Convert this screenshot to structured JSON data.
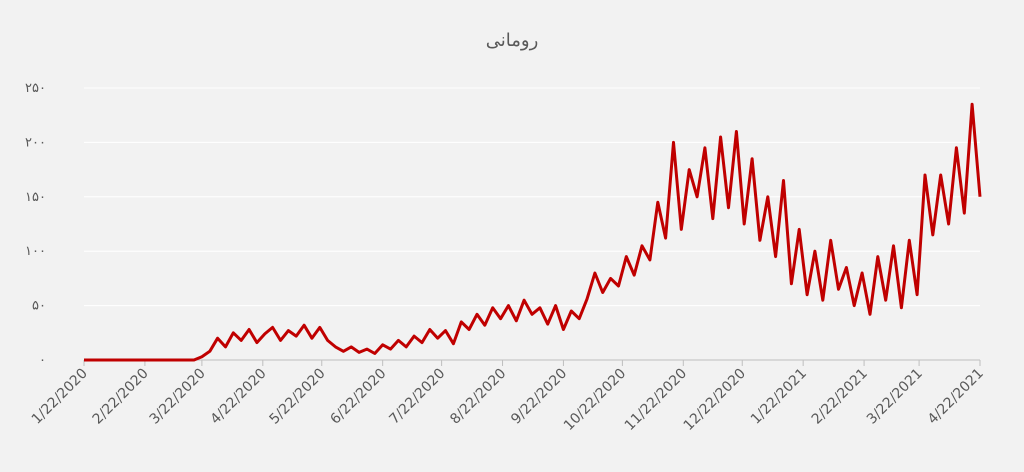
{
  "chart_data": {
    "type": "line",
    "title": "رومانی",
    "color": "#c00000",
    "grid": true,
    "x": [
      "1/22/2020",
      "1/26/2020",
      "1/30/2020",
      "2/3/2020",
      "2/7/2020",
      "2/11/2020",
      "2/15/2020",
      "2/19/2020",
      "2/23/2020",
      "2/27/2020",
      "3/2/2020",
      "3/6/2020",
      "3/10/2020",
      "3/14/2020",
      "3/18/2020",
      "3/22/2020",
      "3/26/2020",
      "3/30/2020",
      "4/3/2020",
      "4/7/2020",
      "4/11/2020",
      "4/15/2020",
      "4/19/2020",
      "4/23/2020",
      "4/27/2020",
      "5/1/2020",
      "5/5/2020",
      "5/9/2020",
      "5/13/2020",
      "5/17/2020",
      "5/21/2020",
      "5/25/2020",
      "5/29/2020",
      "6/2/2020",
      "6/6/2020",
      "6/10/2020",
      "6/14/2020",
      "6/18/2020",
      "6/22/2020",
      "6/26/2020",
      "6/30/2020",
      "7/4/2020",
      "7/8/2020",
      "7/12/2020",
      "7/16/2020",
      "7/20/2020",
      "7/24/2020",
      "7/28/2020",
      "8/1/2020",
      "8/5/2020",
      "8/9/2020",
      "8/13/2020",
      "8/17/2020",
      "8/21/2020",
      "8/25/2020",
      "8/29/2020",
      "9/2/2020",
      "9/6/2020",
      "9/10/2020",
      "9/14/2020",
      "9/18/2020",
      "9/22/2020",
      "9/26/2020",
      "9/30/2020",
      "10/4/2020",
      "10/8/2020",
      "10/12/2020",
      "10/16/2020",
      "10/20/2020",
      "10/24/2020",
      "10/28/2020",
      "11/1/2020",
      "11/5/2020",
      "11/9/2020",
      "11/13/2020",
      "11/17/2020",
      "11/21/2020",
      "11/25/2020",
      "11/29/2020",
      "12/3/2020",
      "12/7/2020",
      "12/11/2020",
      "12/15/2020",
      "12/19/2020",
      "12/23/2020",
      "12/27/2020",
      "12/31/2020",
      "1/4/2021",
      "1/8/2021",
      "1/12/2021",
      "1/16/2021",
      "1/20/2021",
      "1/24/2021",
      "1/28/2021",
      "2/1/2021",
      "2/5/2021",
      "2/9/2021",
      "2/13/2021",
      "2/17/2021",
      "2/21/2021",
      "2/25/2021",
      "3/1/2021",
      "3/5/2021",
      "3/9/2021",
      "3/13/2021",
      "3/17/2021",
      "3/21/2021",
      "3/25/2021",
      "3/29/2021",
      "4/2/2021",
      "4/6/2021",
      "4/10/2021",
      "4/14/2021",
      "4/18/2021",
      "4/22/2021"
    ],
    "values": [
      0,
      0,
      0,
      0,
      0,
      0,
      0,
      0,
      0,
      0,
      0,
      0,
      0,
      0,
      0,
      3,
      8,
      20,
      12,
      25,
      18,
      28,
      16,
      24,
      30,
      18,
      27,
      22,
      32,
      20,
      30,
      18,
      12,
      8,
      12,
      7,
      10,
      6,
      14,
      10,
      18,
      12,
      22,
      16,
      28,
      20,
      27,
      15,
      35,
      28,
      42,
      32,
      48,
      38,
      50,
      36,
      55,
      42,
      48,
      33,
      50,
      28,
      45,
      38,
      56,
      80,
      62,
      75,
      68,
      95,
      78,
      105,
      92,
      145,
      112,
      200,
      120,
      175,
      150,
      195,
      130,
      205,
      140,
      210,
      125,
      185,
      110,
      150,
      95,
      165,
      70,
      120,
      60,
      100,
      55,
      110,
      65,
      85,
      50,
      80,
      42,
      95,
      55,
      105,
      48,
      110,
      60,
      170,
      115,
      170,
      125,
      195,
      135,
      235,
      150
    ],
    "xlim": [
      "1/22/2020",
      "4/22/2021"
    ],
    "xticks": [
      "1/22/2020",
      "2/22/2020",
      "3/22/2020",
      "4/22/2020",
      "5/22/2020",
      "6/22/2020",
      "7/22/2020",
      "8/22/2020",
      "9/22/2020",
      "10/22/2020",
      "11/22/2020",
      "12/22/2020",
      "1/22/2021",
      "2/22/2021",
      "3/22/2021",
      "4/22/2021"
    ],
    "ylim": [
      0,
      250
    ],
    "yticks": [
      {
        "value": 0,
        "label": "۰"
      },
      {
        "value": 50,
        "label": "۵۰"
      },
      {
        "value": 100,
        "label": "۱۰۰"
      },
      {
        "value": 150,
        "label": "۱۵۰"
      },
      {
        "value": 200,
        "label": "۲۰۰"
      },
      {
        "value": 250,
        "label": "۲۵۰"
      }
    ]
  }
}
